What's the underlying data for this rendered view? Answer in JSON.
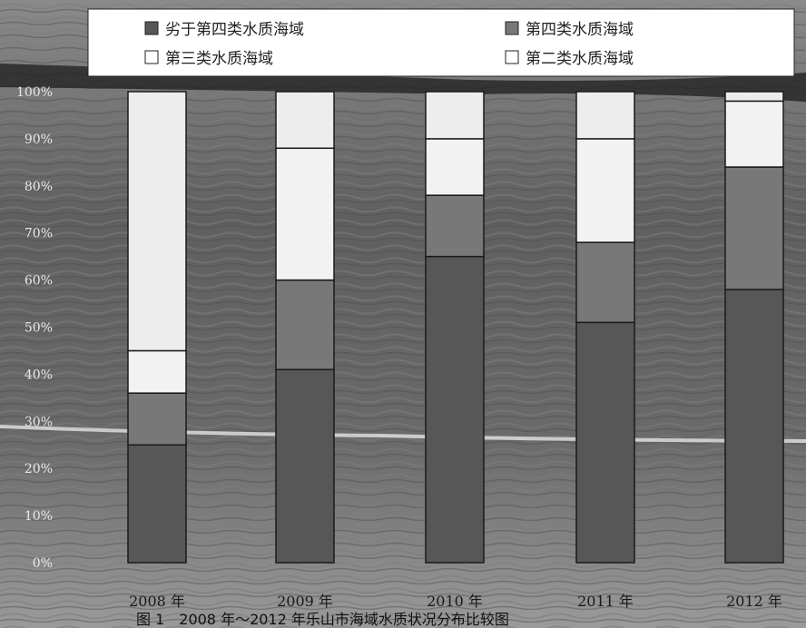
{
  "chart_data": {
    "type": "bar",
    "stacked": true,
    "percent": true,
    "categories": [
      "2008 年",
      "2009 年",
      "2010 年",
      "2011 年",
      "2012 年"
    ],
    "series": [
      {
        "name": "劣于第四类水质海域",
        "color": "#575757",
        "values": [
          25,
          41,
          65,
          51,
          58
        ]
      },
      {
        "name": "第四类水质海域",
        "color": "#787878",
        "values": [
          11,
          19,
          13,
          17,
          26
        ]
      },
      {
        "name": "第三类水质海域",
        "color": "#f2f2f2",
        "values": [
          9,
          28,
          12,
          22,
          14
        ]
      },
      {
        "name": "第二类水质海域",
        "color": "#ededed",
        "values": [
          55,
          12,
          10,
          10,
          2
        ]
      }
    ],
    "yticks": [
      "0%",
      "10%",
      "20%",
      "30%",
      "40%",
      "50%",
      "60%",
      "70%",
      "80%",
      "90%",
      "100%"
    ],
    "ylim": [
      0,
      100
    ],
    "legend_position": "top",
    "grid": false,
    "caption": "图 1　2008 年～2012 年乐山市海域水质状况分布比较图"
  }
}
